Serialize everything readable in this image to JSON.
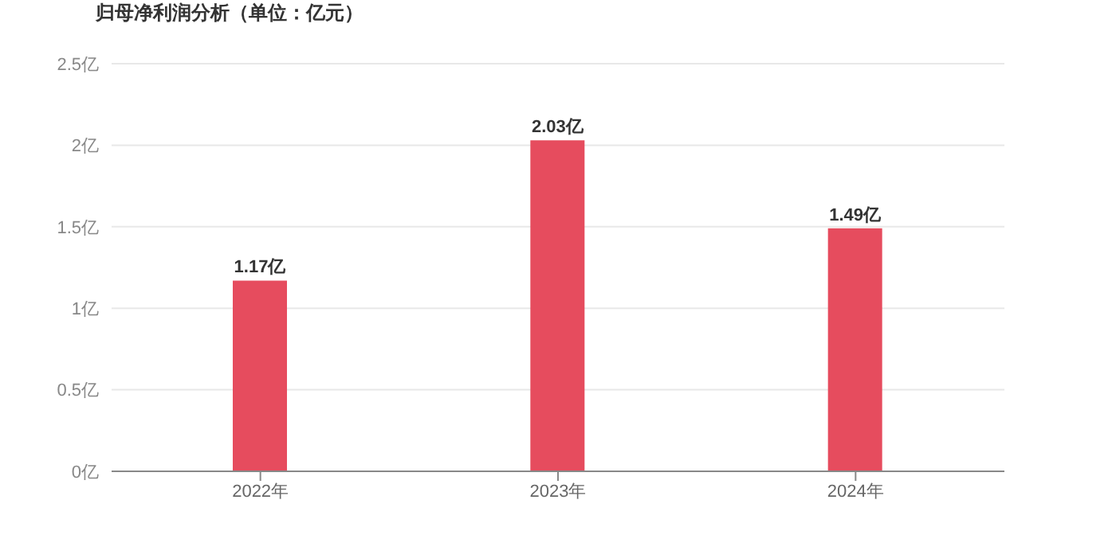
{
  "chart_data": {
    "type": "bar",
    "title": "归母净利润分析（单位：亿元）",
    "categories": [
      "2022年",
      "2023年",
      "2024年"
    ],
    "values": [
      1.17,
      2.03,
      1.49
    ],
    "value_labels": [
      "1.17亿",
      "2.03亿",
      "1.49亿"
    ],
    "color": "#e64c5e",
    "ylim": [
      0,
      2.5
    ],
    "yticks": [
      {
        "value": 0,
        "label": "0亿"
      },
      {
        "value": 0.5,
        "label": "0.5亿"
      },
      {
        "value": 1,
        "label": "1亿"
      },
      {
        "value": 1.5,
        "label": "1.5亿"
      },
      {
        "value": 2,
        "label": "2亿"
      },
      {
        "value": 2.5,
        "label": "2.5亿"
      }
    ],
    "grid": "y"
  }
}
